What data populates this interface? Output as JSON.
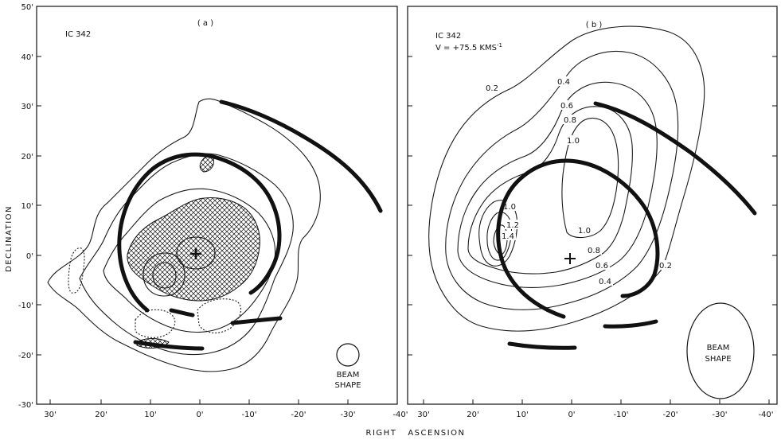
{
  "axes": {
    "x_title": "RIGHT   ASCENSION",
    "y_title": "DECLINATION",
    "y_ticks": [
      "50'",
      "40'",
      "30'",
      "20'",
      "10'",
      "0'",
      "-10'",
      "-20'",
      "-30'"
    ],
    "x_ticks_a": [
      "30'",
      "20'",
      "10'",
      "0'",
      "-10'",
      "-20'",
      "-30'"
    ],
    "x_ticks_b": [
      "30'",
      "20'",
      "10'",
      "0'",
      "-10'",
      "-20'",
      "-30'",
      "-40'"
    ],
    "x_tick_a_end": "-40'"
  },
  "panel_a": {
    "label": "( a )",
    "object": "IC 342",
    "beam_line1": "BEAM",
    "beam_line2": "SHAPE"
  },
  "panel_b": {
    "label": "( b )",
    "object": "IC 342",
    "velocity": "V = +75.5 KMS",
    "velocity_exp": "-1",
    "beam_line1": "BEAM",
    "beam_line2": "SHAPE",
    "contour_labels": [
      "0.2",
      "0.4",
      "0.6",
      "0.8",
      "1.0",
      "1.0",
      "1.2",
      "1.4",
      "1.0",
      "0.8",
      "0.6",
      "0.4",
      "0.2"
    ]
  }
}
